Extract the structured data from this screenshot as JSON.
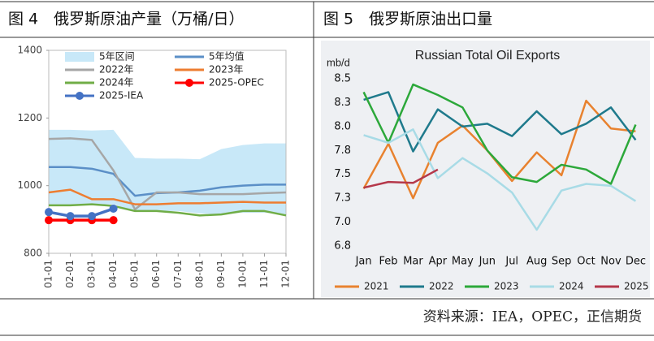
{
  "chart_data": [
    {
      "type": "line",
      "figure_title": "图 4　俄罗斯原油产量（万桶/日）",
      "categories": [
        "01-01",
        "02-01",
        "03-01",
        "04-01",
        "05-01",
        "06-01",
        "07-01",
        "08-01",
        "09-01",
        "10-01",
        "11-01",
        "12-01"
      ],
      "ylim": [
        800,
        1400
      ],
      "yticks": [
        800,
        1000,
        1200,
        1400
      ],
      "series": [
        {
          "name": "5年区间",
          "type": "band",
          "color": "#c8e8f8",
          "high": [
            1165,
            1165,
            1163,
            1165,
            1082,
            1080,
            1080,
            1078,
            1108,
            1120,
            1125,
            1125
          ],
          "low": [
            940,
            940,
            945,
            945,
            925,
            925,
            925,
            918,
            915,
            920,
            920,
            915
          ]
        },
        {
          "name": "5年均值",
          "color": "#5b8fc7",
          "values": [
            1055,
            1055,
            1050,
            1035,
            970,
            978,
            980,
            985,
            995,
            1000,
            1003,
            1003
          ]
        },
        {
          "name": "2022年",
          "color": "#a6a6a6",
          "values": [
            1138,
            1140,
            1135,
            1045,
            930,
            980,
            980,
            975,
            975,
            975,
            978,
            980
          ]
        },
        {
          "name": "2023年",
          "color": "#ed7d31",
          "values": [
            980,
            988,
            960,
            960,
            945,
            945,
            948,
            948,
            950,
            952,
            950,
            950
          ]
        },
        {
          "name": "2024年",
          "color": "#70ad47",
          "values": [
            942,
            942,
            945,
            940,
            925,
            925,
            920,
            912,
            915,
            925,
            925,
            912
          ]
        },
        {
          "name": "2025-OPEC",
          "color": "#ff0000",
          "marker": true,
          "values": [
            898,
            898,
            898,
            898,
            null,
            null,
            null,
            null,
            null,
            null,
            null,
            null
          ]
        },
        {
          "name": "2025-IEA",
          "color": "#4472c4",
          "marker": true,
          "values": [
            922,
            910,
            910,
            932,
            null,
            null,
            null,
            null,
            null,
            null,
            null,
            null
          ]
        }
      ]
    },
    {
      "type": "line",
      "figure_title": "图 5　俄罗斯原油出口量",
      "title": "Russian Total Oil Exports",
      "ylabel": "mb/d",
      "categories": [
        "Jan",
        "Feb",
        "Mar",
        "Apr",
        "May",
        "Jun",
        "Jul",
        "Aug",
        "Sep",
        "Oct",
        "Nov",
        "Dec"
      ],
      "ylim": [
        6.75,
        8.5
      ],
      "yticks": [
        {
          "value": 6.75,
          "label": "6.8"
        },
        {
          "value": 7.0,
          "label": "7.0"
        },
        {
          "value": 7.25,
          "label": "7.3"
        },
        {
          "value": 7.5,
          "label": "7.5"
        },
        {
          "value": 7.75,
          "label": "7.8"
        },
        {
          "value": 8.0,
          "label": "8.0"
        },
        {
          "value": 8.25,
          "label": "8.3"
        },
        {
          "value": 8.5,
          "label": "8.5"
        }
      ],
      "series": [
        {
          "name": "2021",
          "color": "#e8822f",
          "values": [
            7.35,
            7.82,
            7.25,
            7.83,
            8.01,
            7.75,
            7.43,
            7.73,
            7.49,
            8.27,
            7.98,
            7.95
          ]
        },
        {
          "name": "2022",
          "color": "#1f7a8c",
          "values": [
            8.28,
            8.36,
            7.74,
            8.18,
            8.0,
            8.03,
            7.9,
            8.16,
            7.92,
            8.03,
            8.2,
            7.86
          ]
        },
        {
          "name": "2023",
          "color": "#2ca83a",
          "values": [
            8.36,
            7.83,
            8.44,
            8.33,
            8.2,
            7.75,
            7.47,
            7.42,
            7.6,
            7.55,
            7.4,
            8.02
          ]
        },
        {
          "name": "2024",
          "color": "#a8dbe6",
          "values": [
            7.91,
            7.83,
            7.97,
            7.46,
            7.67,
            7.51,
            7.31,
            6.92,
            7.33,
            7.4,
            7.38,
            7.22
          ]
        },
        {
          "name": "2025",
          "color": "#b5384a",
          "values": [
            7.36,
            7.42,
            7.41,
            7.55,
            null,
            null,
            null,
            null,
            null,
            null,
            null,
            null
          ]
        }
      ]
    }
  ],
  "source": "资料来源：IEA，OPEC，正信期货"
}
